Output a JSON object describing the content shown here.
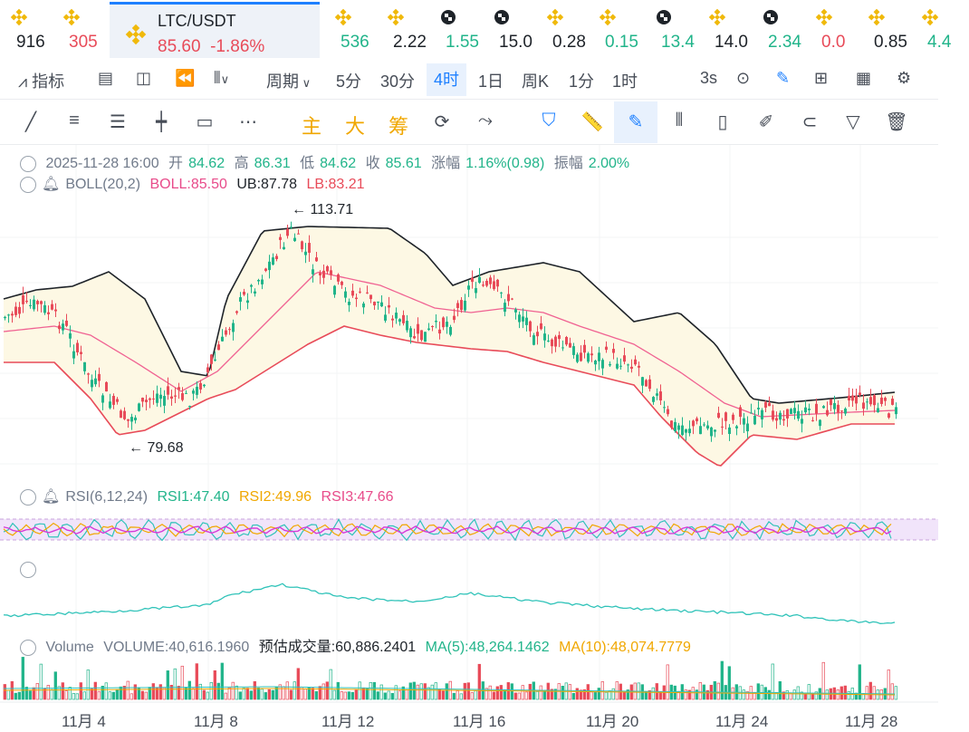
{
  "ticker": [
    {
      "value": "916",
      "color": "dark",
      "icon": "bnb-icon"
    },
    {
      "value": "305",
      "color": "red",
      "icon": "bnb-icon"
    },
    {
      "value": "536",
      "color": "green",
      "icon": "bnb-icon"
    },
    {
      "value": "2.22",
      "color": "dark",
      "icon": "bnb-icon"
    },
    {
      "value": "1.55",
      "color": "green",
      "icon": "checker-icon"
    },
    {
      "value": "15.0",
      "color": "dark",
      "icon": "checker-icon"
    },
    {
      "value": "0.28",
      "color": "dark",
      "icon": "bnb-icon"
    },
    {
      "value": "0.15",
      "color": "green",
      "icon": "bnb-icon"
    },
    {
      "value": "13.4",
      "color": "green",
      "icon": "checker-icon"
    },
    {
      "value": "14.0",
      "color": "dark",
      "icon": "bnb-icon"
    },
    {
      "value": "2.34",
      "color": "green",
      "icon": "checker-icon"
    },
    {
      "value": "0.0",
      "color": "red",
      "icon": "bnb-icon"
    },
    {
      "value": "0.85",
      "color": "dark",
      "icon": "bnb-icon"
    },
    {
      "value": "4.4",
      "color": "green",
      "icon": "bnb-icon"
    }
  ],
  "active_symbol": {
    "name": "LTC/USDT",
    "price": "85.60",
    "change": "-1.86%"
  },
  "toolbar": {
    "indicator": "指标",
    "period": "周期",
    "p5m": "5分",
    "p30m": "30分",
    "p4h": "4时",
    "p1d": "1日",
    "pweek": "周K",
    "p1m": "1分",
    "p1h": "1时",
    "refresh": "3s"
  },
  "draw_tools": {
    "zhu": "主",
    "da": "大",
    "chou": "筹"
  },
  "ohlc": {
    "date": "2025-11-28 16:00",
    "open_label": "开",
    "open": "84.62",
    "high_label": "高",
    "high": "86.31",
    "low_label": "低",
    "low": "84.62",
    "close_label": "收",
    "close": "85.61",
    "chg_label": "涨幅",
    "chg": "1.16%(0.98)",
    "amp_label": "振幅",
    "amp": "2.00%"
  },
  "boll": {
    "label": "BOLL(20,2)",
    "boll": "BOLL:85.50",
    "ub": "UB:87.78",
    "lb": "LB:83.21",
    "max_marker": "113.71",
    "min_marker": "79.68"
  },
  "rsi": {
    "label": "RSI(6,12,24)",
    "rsi1": "RSI1:47.40",
    "rsi2": "RSI2:49.96",
    "rsi3": "RSI3:47.66"
  },
  "volume": {
    "label": "Volume",
    "vol": "VOLUME:40,616.1960",
    "est": "预估成交量:60,886.2401",
    "ma5": "MA(5):48,264.1462",
    "ma10": "MA(10):48,074.7779"
  },
  "x_axis": [
    "11月 4",
    "11月 8",
    "11月 12",
    "11月 16",
    "11月 20",
    "11月 24",
    "11月 28"
  ],
  "colors": {
    "up": "#21b48a",
    "down": "#e84b59",
    "ub": "#1e2329",
    "mid": "#f06292",
    "lb": "#e84b59",
    "band": "#fdf8e4",
    "rsi_band": "#f1e4fa"
  }
}
